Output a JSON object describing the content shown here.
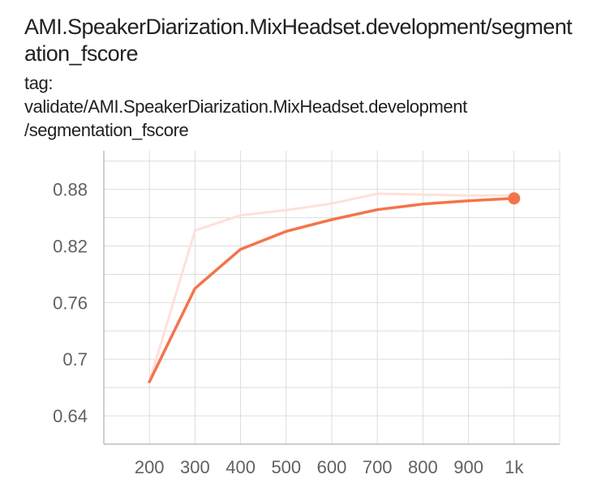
{
  "card": {
    "title": "AMI.SpeakerDiarization.MixHeadset.development/segmentation_fscore",
    "tag_prefix": "tag:",
    "tag_value_line1": "validate/AMI.SpeakerDiarization.MixHeadset.development",
    "tag_value_line2": "/segmentation_fscore"
  },
  "colors": {
    "smoothed": "#f4744a",
    "raw": "#fde1d8",
    "grid": "#dddddd",
    "axis": "#bdbdbd"
  },
  "chart_data": {
    "type": "line",
    "x": [
      200,
      300,
      400,
      500,
      600,
      700,
      800,
      900,
      1000
    ],
    "xticks": [
      200,
      300,
      400,
      500,
      600,
      700,
      800,
      900,
      1000
    ],
    "xtick_labels": [
      "200",
      "300",
      "400",
      "500",
      "600",
      "700",
      "800",
      "900",
      "1k"
    ],
    "xlim": [
      100,
      1100
    ],
    "yticks": [
      0.64,
      0.7,
      0.76,
      0.82,
      0.88
    ],
    "ytick_labels": [
      "0.64",
      "0.7",
      "0.76",
      "0.82",
      "0.88"
    ],
    "ylim": [
      0.61,
      0.921
    ],
    "grid": true,
    "series": [
      {
        "role": "raw",
        "values": [
          0.676,
          0.8365,
          0.8525,
          0.858,
          0.865,
          0.8755,
          0.8745,
          0.8735,
          0.8735
        ]
      },
      {
        "role": "smoothed",
        "values": [
          0.676,
          0.775,
          0.8165,
          0.8355,
          0.848,
          0.8585,
          0.8645,
          0.868,
          0.8705
        ]
      }
    ],
    "last_point_marker": true
  }
}
